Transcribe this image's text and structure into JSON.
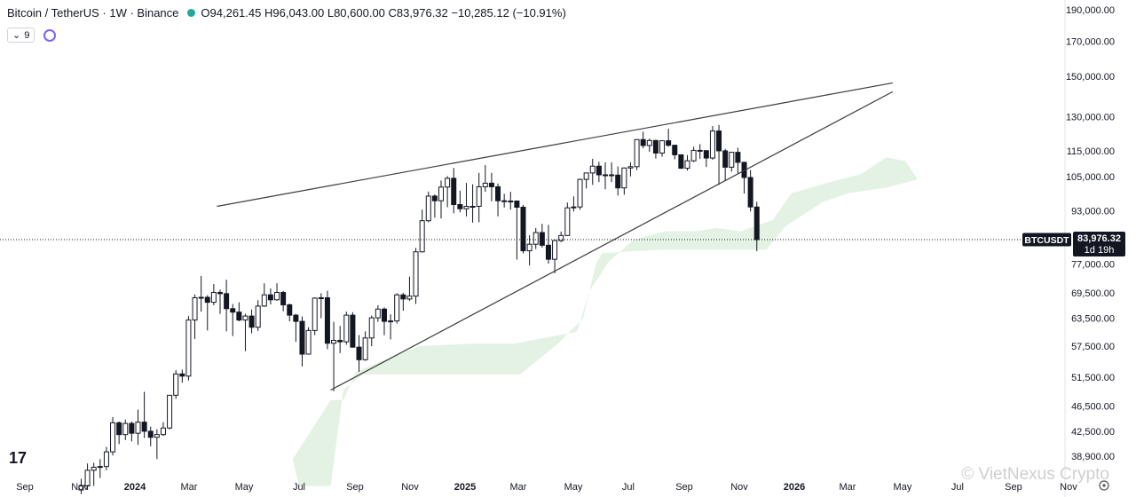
{
  "header": {
    "symbol": "Bitcoin / TetherUS · 1W · Binance",
    "open": "O94,261.45",
    "high": "H96,043.00",
    "low": "L80,600.00",
    "close": "C83,976.32",
    "change": "−10,285.12 (−10.91%)",
    "status_color": "#26a69a"
  },
  "indicator": {
    "badge": "9",
    "chevron": "⌄"
  },
  "price_tag": {
    "symbol": "BTCUSDT",
    "price": "83,976.32",
    "countdown": "1d 19h"
  },
  "watermark": "© VietNexus Crypto",
  "logo_text": "17",
  "colors": {
    "cloud": "#e3f2e3",
    "candle": "#131722",
    "trendline": "#3a3a3a"
  },
  "chart_data": {
    "type": "candlestick",
    "scale": "log",
    "y_ticks": [
      190000,
      170000,
      150000,
      130000,
      115000,
      105000,
      93000,
      77000,
      69500,
      63500,
      57500,
      51500,
      46500,
      42500,
      38900
    ],
    "y_tick_labels": [
      "190,000.00",
      "170,000.00",
      "150,000.00",
      "130,000.00",
      "115,000.00",
      "105,000.00",
      "93,000.00",
      "77,000.00",
      "69,500.00",
      "63,500.00",
      "57,500.00",
      "51,500.00",
      "46,500.00",
      "42,500.00",
      "38,900.00"
    ],
    "x_labels": [
      "Sep",
      "Nov",
      "2024",
      "Mar",
      "May",
      "Jul",
      "Sep",
      "Nov",
      "2025",
      "Mar",
      "May",
      "Jul",
      "Sep",
      "Nov",
      "2026",
      "Mar",
      "May",
      "Jul",
      "Sep",
      "Nov"
    ],
    "x_label_dates": [
      "2023-09-01",
      "2023-11-01",
      "2024-01-01",
      "2024-03-01",
      "2024-05-01",
      "2024-07-01",
      "2024-09-01",
      "2024-11-01",
      "2025-01-01",
      "2025-03-01",
      "2025-05-01",
      "2025-07-01",
      "2025-09-01",
      "2025-11-01",
      "2026-01-01",
      "2026-03-01",
      "2026-05-01",
      "2026-07-01",
      "2026-09-01",
      "2026-11-01"
    ],
    "current_price": 83976.32,
    "candles": [
      [
        "2023-10-30",
        34500,
        35900,
        34000,
        35000
      ],
      [
        "2023-11-06",
        35000,
        37900,
        34500,
        37000
      ],
      [
        "2023-11-13",
        37000,
        38000,
        35000,
        37400
      ],
      [
        "2023-11-20",
        37400,
        38500,
        36000,
        37500
      ],
      [
        "2023-11-27",
        37500,
        40200,
        37000,
        39500
      ],
      [
        "2023-12-04",
        39500,
        44700,
        39000,
        43800
      ],
      [
        "2023-12-11",
        43800,
        44000,
        40600,
        42000
      ],
      [
        "2023-12-18",
        42000,
        44300,
        41200,
        43700
      ],
      [
        "2023-12-25",
        43700,
        44000,
        41000,
        42200
      ],
      [
        "2024-01-01",
        42200,
        45900,
        40500,
        43900
      ],
      [
        "2024-01-08",
        43900,
        48900,
        41500,
        42500
      ],
      [
        "2024-01-15",
        42500,
        43200,
        40300,
        41600
      ],
      [
        "2024-01-22",
        41600,
        42800,
        38500,
        42000
      ],
      [
        "2024-01-29",
        42000,
        43900,
        41800,
        43000
      ],
      [
        "2024-02-05",
        43000,
        48200,
        42800,
        48300
      ],
      [
        "2024-02-12",
        48300,
        52800,
        47700,
        52100
      ],
      [
        "2024-02-19",
        52100,
        52900,
        50500,
        51700
      ],
      [
        "2024-02-26",
        51700,
        64000,
        50900,
        63100
      ],
      [
        "2024-03-04",
        63100,
        69100,
        59000,
        68300
      ],
      [
        "2024-03-11",
        68300,
        73800,
        65000,
        68400
      ],
      [
        "2024-03-18",
        68400,
        68900,
        60800,
        67200
      ],
      [
        "2024-03-25",
        67200,
        71700,
        66500,
        69600
      ],
      [
        "2024-04-01",
        69600,
        70300,
        64500,
        69300
      ],
      [
        "2024-04-08",
        69300,
        72800,
        60600,
        65700
      ],
      [
        "2024-04-15",
        65700,
        66800,
        59600,
        64900
      ],
      [
        "2024-04-22",
        64900,
        67200,
        62800,
        63100
      ],
      [
        "2024-04-29",
        63100,
        64500,
        56500,
        64000
      ],
      [
        "2024-05-06",
        64000,
        65500,
        60200,
        61500
      ],
      [
        "2024-05-13",
        61500,
        67700,
        60700,
        66300
      ],
      [
        "2024-05-20",
        66300,
        71900,
        66100,
        69000
      ],
      [
        "2024-05-27",
        69000,
        70600,
        66700,
        67800
      ],
      [
        "2024-06-03",
        67800,
        71900,
        67600,
        69600
      ],
      [
        "2024-06-10",
        69600,
        70000,
        65100,
        66600
      ],
      [
        "2024-06-17",
        66600,
        66900,
        62800,
        64200
      ],
      [
        "2024-06-24",
        64200,
        64500,
        58400,
        62800
      ],
      [
        "2024-07-01",
        62800,
        63900,
        53500,
        55900
      ],
      [
        "2024-07-08",
        55900,
        61500,
        55800,
        60800
      ],
      [
        "2024-07-15",
        60800,
        68400,
        59800,
        68200
      ],
      [
        "2024-07-22",
        68200,
        69400,
        63500,
        68300
      ],
      [
        "2024-07-29",
        68300,
        70000,
        56900,
        58100
      ],
      [
        "2024-08-05",
        58100,
        62700,
        49000,
        58700
      ],
      [
        "2024-08-12",
        58700,
        61800,
        56100,
        58400
      ],
      [
        "2024-08-19",
        58400,
        65000,
        57800,
        64200
      ],
      [
        "2024-08-26",
        64200,
        64900,
        57200,
        57300
      ],
      [
        "2024-09-02",
        57300,
        59800,
        52500,
        54800
      ],
      [
        "2024-09-09",
        54800,
        60600,
        54600,
        59200
      ],
      [
        "2024-09-16",
        59200,
        64100,
        57500,
        63600
      ],
      [
        "2024-09-23",
        63600,
        66500,
        62700,
        65600
      ],
      [
        "2024-09-30",
        65600,
        66000,
        59800,
        62800
      ],
      [
        "2024-10-07",
        62800,
        64400,
        58900,
        62900
      ],
      [
        "2024-10-14",
        62900,
        69400,
        62300,
        69000
      ],
      [
        "2024-10-21",
        69000,
        69500,
        65200,
        68000
      ],
      [
        "2024-10-28",
        68000,
        73600,
        67500,
        68700
      ],
      [
        "2024-11-04",
        68700,
        81500,
        66800,
        80400
      ],
      [
        "2024-11-11",
        80400,
        93400,
        80200,
        89800
      ],
      [
        "2024-11-18",
        89800,
        99600,
        89300,
        98000
      ],
      [
        "2024-11-25",
        98000,
        98600,
        90800,
        96400
      ],
      [
        "2024-12-02",
        96400,
        103600,
        90500,
        101200
      ],
      [
        "2024-12-09",
        101200,
        105200,
        94200,
        104400
      ],
      [
        "2024-12-16",
        104400,
        108300,
        92200,
        95100
      ],
      [
        "2024-12-23",
        95100,
        99900,
        92500,
        93700
      ],
      [
        "2024-12-30",
        93700,
        102700,
        91200,
        94500
      ],
      [
        "2025-01-06",
        94500,
        102200,
        89200,
        94500
      ],
      [
        "2025-01-13",
        94500,
        106400,
        89300,
        101300
      ],
      [
        "2025-01-20",
        101300,
        109400,
        99500,
        102600
      ],
      [
        "2025-01-27",
        102600,
        106400,
        96200,
        101300
      ],
      [
        "2025-02-03",
        101300,
        102500,
        91200,
        96400
      ],
      [
        "2025-02-10",
        96400,
        98800,
        94100,
        96100
      ],
      [
        "2025-02-17",
        96100,
        99500,
        93400,
        96300
      ],
      [
        "2025-02-24",
        96300,
        96500,
        78200,
        94200
      ],
      [
        "2025-03-03",
        94200,
        95000,
        80000,
        80700
      ],
      [
        "2025-03-10",
        80700,
        85300,
        76600,
        82600
      ],
      [
        "2025-03-17",
        82600,
        87500,
        81200,
        86100
      ],
      [
        "2025-03-24",
        86100,
        88800,
        81600,
        82300
      ],
      [
        "2025-03-31",
        82300,
        88500,
        77100,
        78300
      ],
      [
        "2025-04-07",
        78300,
        83600,
        74500,
        83700
      ],
      [
        "2025-04-14",
        83700,
        86400,
        83200,
        85200
      ],
      [
        "2025-04-21",
        85200,
        95800,
        85100,
        94000
      ],
      [
        "2025-04-28",
        94000,
        97900,
        92800,
        94300
      ],
      [
        "2025-05-05",
        94300,
        104300,
        93400,
        104000
      ],
      [
        "2025-05-12",
        104000,
        105800,
        100700,
        106400
      ],
      [
        "2025-05-19",
        106400,
        111900,
        102000,
        109000
      ],
      [
        "2025-05-26",
        109000,
        110700,
        103000,
        105700
      ],
      [
        "2025-06-02",
        105700,
        110500,
        100400,
        105700
      ],
      [
        "2025-06-09",
        105700,
        110500,
        103000,
        105600
      ],
      [
        "2025-06-16",
        105600,
        108900,
        98200,
        100900
      ],
      [
        "2025-06-23",
        100900,
        108500,
        98500,
        108300
      ],
      [
        "2025-06-30",
        108300,
        110500,
        105100,
        108800
      ],
      [
        "2025-07-07",
        108800,
        119500,
        107500,
        119800
      ],
      [
        "2025-07-14",
        119800,
        123200,
        116200,
        117300
      ],
      [
        "2025-07-21",
        117300,
        120200,
        114700,
        119400
      ],
      [
        "2025-07-28",
        119400,
        119700,
        112000,
        114200
      ],
      [
        "2025-08-04",
        114200,
        119300,
        112700,
        119300
      ],
      [
        "2025-08-11",
        119300,
        124500,
        116800,
        117400
      ],
      [
        "2025-08-18",
        117400,
        117600,
        111700,
        113500
      ],
      [
        "2025-08-25",
        113500,
        113600,
        107900,
        108200
      ],
      [
        "2025-09-01",
        108200,
        113400,
        107300,
        111100
      ],
      [
        "2025-09-08",
        111100,
        116800,
        110600,
        115300
      ],
      [
        "2025-09-15",
        115300,
        117900,
        111900,
        115200
      ],
      [
        "2025-09-22",
        115200,
        115300,
        108700,
        112200
      ],
      [
        "2025-09-29",
        112200,
        125700,
        111500,
        123500
      ],
      [
        "2025-10-06",
        123500,
        126200,
        102000,
        115100
      ],
      [
        "2025-10-13",
        115100,
        115900,
        103500,
        108600
      ],
      [
        "2025-10-20",
        108600,
        114000,
        106900,
        114500
      ],
      [
        "2025-10-27",
        114500,
        116400,
        106300,
        110500
      ],
      [
        "2025-11-03",
        110500,
        110700,
        98900,
        104700
      ],
      [
        "2025-11-10",
        104700,
        107500,
        92800,
        94300
      ],
      [
        "2025-11-17",
        94261.45,
        96043,
        80600,
        83976.32
      ]
    ],
    "trendlines": [
      {
        "name": "upper",
        "from": [
          "2024-04-01",
          94500
        ],
        "to": [
          "2026-04-20",
          146500
        ]
      },
      {
        "name": "lower",
        "from": [
          "2024-08-05",
          49200
        ],
        "to": [
          "2026-04-20",
          142000
        ]
      }
    ],
    "cloud": {
      "upper": [
        [
          "2024-06-24",
          38500
        ],
        [
          "2024-08-05",
          47500
        ],
        [
          "2024-08-19",
          47500
        ],
        [
          "2024-09-02",
          52500
        ],
        [
          "2024-10-07",
          55000
        ],
        [
          "2024-11-11",
          57500
        ],
        [
          "2025-01-06",
          58000
        ],
        [
          "2025-02-24",
          58000
        ],
        [
          "2025-04-07",
          59500
        ],
        [
          "2025-05-05",
          60500
        ],
        [
          "2025-05-19",
          70000
        ],
        [
          "2025-06-09",
          77500
        ],
        [
          "2025-07-07",
          84000
        ],
        [
          "2025-08-11",
          86500
        ],
        [
          "2025-09-15",
          86500
        ],
        [
          "2025-10-06",
          87500
        ],
        [
          "2025-11-03",
          86500
        ],
        [
          "2025-12-08",
          90000
        ],
        [
          "2025-12-29",
          99000
        ],
        [
          "2026-02-09",
          103000
        ],
        [
          "2026-03-16",
          106000
        ],
        [
          "2026-04-13",
          112500
        ],
        [
          "2026-05-04",
          111000
        ],
        [
          "2026-05-18",
          104000
        ]
      ],
      "lower": [
        [
          "2026-05-18",
          104000
        ],
        [
          "2026-04-13",
          101000
        ],
        [
          "2026-03-02",
          99000
        ],
        [
          "2026-02-02",
          96000
        ],
        [
          "2025-12-22",
          88000
        ],
        [
          "2025-12-01",
          81000
        ],
        [
          "2025-08-04",
          81000
        ],
        [
          "2025-06-02",
          80000
        ],
        [
          "2025-05-26",
          77000
        ],
        [
          "2025-05-12",
          63500
        ],
        [
          "2025-04-14",
          58000
        ],
        [
          "2025-03-03",
          52000
        ],
        [
          "2024-11-04",
          52000
        ],
        [
          "2024-09-09",
          52000
        ],
        [
          "2024-08-19",
          49200
        ],
        [
          "2024-08-05",
          35000
        ],
        [
          "2024-07-01",
          35000
        ]
      ]
    }
  }
}
